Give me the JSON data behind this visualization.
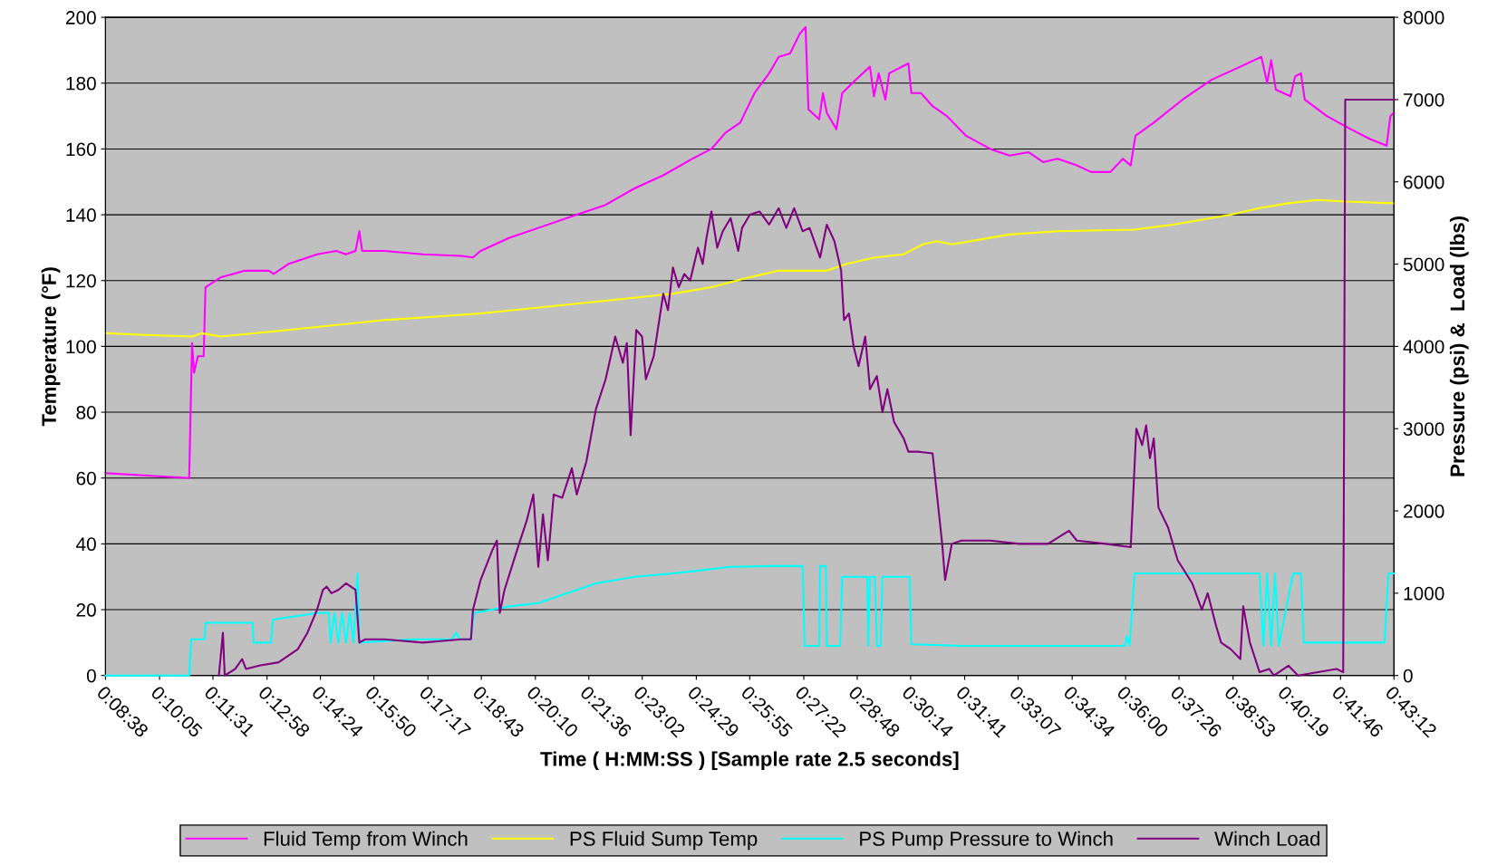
{
  "chart_data": {
    "type": "line",
    "xlabel": "Time ( H:MM:SS ) [Sample rate 2.5 seconds]",
    "ylabel": "Temperature (°F)",
    "y2label": "Pressure (psi) &  Load (lbs)",
    "xlim": [
      0.143889,
      0.72
    ],
    "xticks": [
      {
        "value": 0.143889,
        "label": "0:08:38"
      },
      {
        "value": 0.168056,
        "label": "0:10:05"
      },
      {
        "value": 0.191944,
        "label": "0:11:31"
      },
      {
        "value": 0.216111,
        "label": "0:12:58"
      },
      {
        "value": 0.24,
        "label": "0:14:24"
      },
      {
        "value": 0.263889,
        "label": "0:15:50"
      },
      {
        "value": 0.288056,
        "label": "0:17:17"
      },
      {
        "value": 0.311944,
        "label": "0:18:43"
      },
      {
        "value": 0.336111,
        "label": "0:20:10"
      },
      {
        "value": 0.36,
        "label": "0:21:36"
      },
      {
        "value": 0.383889,
        "label": "0:23:02"
      },
      {
        "value": 0.408056,
        "label": "0:24:29"
      },
      {
        "value": 0.431944,
        "label": "0:25:55"
      },
      {
        "value": 0.456111,
        "label": "0:27:22"
      },
      {
        "value": 0.48,
        "label": "0:28:48"
      },
      {
        "value": 0.503889,
        "label": "0:30:14"
      },
      {
        "value": 0.528056,
        "label": "0:31:41"
      },
      {
        "value": 0.551944,
        "label": "0:33:07"
      },
      {
        "value": 0.576111,
        "label": "0:34:34"
      },
      {
        "value": 0.6,
        "label": "0:36:00"
      },
      {
        "value": 0.623889,
        "label": "0:37:26"
      },
      {
        "value": 0.648056,
        "label": "0:38:53"
      },
      {
        "value": 0.671944,
        "label": "0:40:19"
      },
      {
        "value": 0.696111,
        "label": "0:41:46"
      },
      {
        "value": 0.72,
        "label": "0:43:12"
      }
    ],
    "ylim": [
      0,
      200
    ],
    "yticks": [
      0,
      20,
      40,
      60,
      80,
      100,
      120,
      140,
      160,
      180,
      200
    ],
    "y2lim": [
      0,
      8000
    ],
    "y2ticks": [
      0,
      1000,
      2000,
      3000,
      4000,
      5000,
      6000,
      7000,
      8000
    ],
    "grid": "y",
    "legend": "bottom",
    "marker": "none",
    "line_style": "solid",
    "series": [
      {
        "name": "Fluid Temp from Winch",
        "color": "#ff00ff",
        "x": [
          0.1439,
          0.1813,
          0.1826,
          0.1835,
          0.1852,
          0.1878,
          0.1886,
          0.1955,
          0.2062,
          0.217,
          0.2191,
          0.2256,
          0.2385,
          0.2471,
          0.2514,
          0.2557,
          0.2574,
          0.2587,
          0.2686,
          0.2858,
          0.303,
          0.3082,
          0.3116,
          0.3245,
          0.3374,
          0.3546,
          0.3675,
          0.3804,
          0.3933,
          0.4062,
          0.4148,
          0.4212,
          0.4277,
          0.4341,
          0.4406,
          0.4449,
          0.45,
          0.4543,
          0.4569,
          0.4582,
          0.463,
          0.4647,
          0.4664,
          0.4707,
          0.4733,
          0.4793,
          0.4857,
          0.4875,
          0.4896,
          0.4926,
          0.4943,
          0.5029,
          0.5042,
          0.5085,
          0.5137,
          0.5201,
          0.5287,
          0.5395,
          0.5481,
          0.5567,
          0.5631,
          0.5696,
          0.5782,
          0.5846,
          0.5932,
          0.5988,
          0.6023,
          0.6044,
          0.6126,
          0.6255,
          0.6384,
          0.6513,
          0.6607,
          0.6633,
          0.6651,
          0.6672,
          0.6737,
          0.6758,
          0.6784,
          0.6801,
          0.69,
          0.7007,
          0.7093,
          0.7167,
          0.7184,
          0.72
        ],
        "values": [
          61.5,
          60,
          101,
          92,
          97,
          97,
          118,
          121,
          123,
          123,
          122,
          125,
          128,
          129,
          128,
          129,
          135,
          129,
          129,
          128,
          127.5,
          127,
          129,
          133,
          136,
          140,
          143,
          148,
          152,
          157,
          160,
          165,
          168,
          177,
          183,
          188,
          189,
          195,
          197,
          172,
          169,
          177,
          171,
          166,
          177,
          181,
          185,
          176,
          183,
          175,
          183,
          186,
          177,
          177,
          173,
          170,
          164,
          160,
          158,
          159,
          156,
          157,
          155,
          153,
          153,
          157,
          155,
          164,
          168,
          175,
          181,
          185,
          188,
          180,
          187,
          178,
          176,
          182,
          183,
          175,
          170,
          166,
          163,
          161,
          170,
          171
        ]
      },
      {
        "name": "PS Fluid Sump Temp",
        "color": "#ffff00",
        "x": [
          0.1439,
          0.1611,
          0.1826,
          0.1869,
          0.1955,
          0.2256,
          0.2686,
          0.3116,
          0.3546,
          0.3976,
          0.4148,
          0.432,
          0.4449,
          0.4578,
          0.4664,
          0.475,
          0.4879,
          0.5008,
          0.5094,
          0.5158,
          0.5223,
          0.5481,
          0.5696,
          0.604,
          0.6212,
          0.647,
          0.6599,
          0.6728,
          0.6857,
          0.6986,
          0.72
        ],
        "values": [
          104,
          103.5,
          103,
          104,
          103,
          105,
          108,
          110,
          113,
          116,
          118,
          121,
          123,
          123,
          123,
          125,
          127,
          128,
          131,
          132,
          131,
          134,
          135,
          135.5,
          137,
          140,
          142,
          143.5,
          144.5,
          144,
          143.5
        ]
      },
      {
        "name": "PS Pump Pressure to Winch",
        "color": "#00ffff",
        "axis": "y2",
        "x": [
          0.1439,
          0.1813,
          0.1822,
          0.1882,
          0.1886,
          0.2097,
          0.2101,
          0.2179,
          0.2187,
          0.2385,
          0.2437,
          0.2445,
          0.2462,
          0.248,
          0.2497,
          0.2514,
          0.2531,
          0.2548,
          0.2566,
          0.2574,
          0.2815,
          0.2987,
          0.3008,
          0.3021,
          0.3073,
          0.3086,
          0.3245,
          0.3374,
          0.346,
          0.3632,
          0.3804,
          0.3976,
          0.4234,
          0.4406,
          0.4556,
          0.4565,
          0.463,
          0.4634,
          0.466,
          0.4664,
          0.4724,
          0.4733,
          0.4845,
          0.4849,
          0.4857,
          0.4879,
          0.4888,
          0.4905,
          0.4913,
          0.4939,
          0.5034,
          0.5042,
          0.5266,
          0.5696,
          0.5997,
          0.6006,
          0.6018,
          0.604,
          0.6599,
          0.6616,
          0.6633,
          0.6651,
          0.6668,
          0.6685,
          0.6749,
          0.6784,
          0.6797,
          0.7158,
          0.7175,
          0.72
        ],
        "values": [
          0,
          0,
          440,
          440,
          640,
          640,
          400,
          400,
          680,
          760,
          760,
          400,
          760,
          400,
          760,
          400,
          760,
          400,
          1240,
          400,
          440,
          440,
          520,
          440,
          440,
          760,
          840,
          880,
          960,
          1120,
          1200,
          1240,
          1320,
          1330,
          1330,
          360,
          360,
          1330,
          1330,
          360,
          360,
          1200,
          1200,
          360,
          1200,
          1200,
          360,
          360,
          1200,
          1200,
          1200,
          380,
          360,
          360,
          360,
          480,
          360,
          1240,
          1240,
          360,
          1240,
          360,
          1240,
          360,
          1240,
          1240,
          400,
          400,
          1240,
          1240
        ]
      },
      {
        "name": "Winch Load",
        "color": "#800080",
        "axis": "y2",
        "x": [
          0.1946,
          0.1964,
          0.1972,
          0.2019,
          0.205,
          0.2067,
          0.2127,
          0.2213,
          0.2299,
          0.2342,
          0.2385,
          0.2411,
          0.2428,
          0.2449,
          0.248,
          0.2514,
          0.2557,
          0.2574,
          0.26,
          0.2686,
          0.2858,
          0.303,
          0.3073,
          0.3082,
          0.3116,
          0.3168,
          0.3189,
          0.3202,
          0.3223,
          0.3288,
          0.3322,
          0.3352,
          0.3374,
          0.3395,
          0.3417,
          0.3443,
          0.3481,
          0.3524,
          0.3546,
          0.3589,
          0.3632,
          0.3675,
          0.3718,
          0.3752,
          0.377,
          0.3787,
          0.3812,
          0.3838,
          0.3855,
          0.389,
          0.3933,
          0.3954,
          0.3976,
          0.4002,
          0.4027,
          0.4053,
          0.4088,
          0.4109,
          0.4126,
          0.4148,
          0.4174,
          0.4199,
          0.4234,
          0.4268,
          0.4285,
          0.432,
          0.4363,
          0.4406,
          0.4449,
          0.4483,
          0.4518,
          0.4556,
          0.4587,
          0.4634,
          0.4664,
          0.4698,
          0.4728,
          0.4741,
          0.4763,
          0.4784,
          0.4806,
          0.4836,
          0.4857,
          0.4888,
          0.4913,
          0.4935,
          0.4965,
          0.5008,
          0.5029,
          0.5072,
          0.5137,
          0.5158,
          0.518,
          0.5193,
          0.5223,
          0.5266,
          0.5395,
          0.5524,
          0.5653,
          0.5747,
          0.5782,
          0.5911,
          0.6023,
          0.6048,
          0.6074,
          0.6092,
          0.6109,
          0.6126,
          0.6147,
          0.619,
          0.6233,
          0.6298,
          0.6341,
          0.6367,
          0.6405,
          0.6427,
          0.647,
          0.6513,
          0.6526,
          0.6556,
          0.6599,
          0.6642,
          0.6663,
          0.6685,
          0.6728,
          0.6771,
          0.6943,
          0.6973,
          0.6982,
          0.72
        ],
        "values": [
          0,
          520,
          0,
          80,
          200,
          80,
          120,
          160,
          320,
          520,
          800,
          1040,
          1080,
          1000,
          1040,
          1120,
          1040,
          400,
          440,
          440,
          400,
          440,
          440,
          800,
          1160,
          1520,
          1640,
          760,
          1040,
          1600,
          1880,
          2200,
          1320,
          1960,
          1400,
          2200,
          2160,
          2520,
          2200,
          2600,
          3240,
          3600,
          4120,
          3800,
          4040,
          2920,
          4200,
          4120,
          3600,
          3880,
          4640,
          4440,
          4960,
          4720,
          4880,
          4800,
          5200,
          5000,
          5320,
          5640,
          5200,
          5400,
          5560,
          5160,
          5440,
          5600,
          5640,
          5480,
          5680,
          5440,
          5680,
          5400,
          5440,
          5080,
          5480,
          5280,
          4920,
          4320,
          4400,
          4000,
          3760,
          4120,
          3480,
          3640,
          3200,
          3480,
          3080,
          2880,
          2720,
          2720,
          2700,
          2160,
          1600,
          1160,
          1600,
          1640,
          1640,
          1600,
          1600,
          1760,
          1640,
          1600,
          1560,
          3000,
          2800,
          3040,
          2640,
          2880,
          2040,
          1800,
          1400,
          1120,
          800,
          1000,
          600,
          400,
          320,
          200,
          840,
          400,
          40,
          80,
          0,
          40,
          120,
          0,
          80,
          40,
          7000,
          7000
        ]
      }
    ]
  }
}
